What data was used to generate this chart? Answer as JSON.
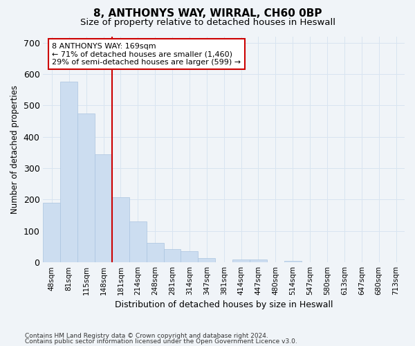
{
  "title1": "8, ANTHONYS WAY, WIRRAL, CH60 0BP",
  "title2": "Size of property relative to detached houses in Heswall",
  "xlabel": "Distribution of detached houses by size in Heswall",
  "ylabel": "Number of detached properties",
  "categories": [
    "48sqm",
    "81sqm",
    "115sqm",
    "148sqm",
    "181sqm",
    "214sqm",
    "248sqm",
    "281sqm",
    "314sqm",
    "347sqm",
    "381sqm",
    "414sqm",
    "447sqm",
    "480sqm",
    "514sqm",
    "547sqm",
    "580sqm",
    "613sqm",
    "647sqm",
    "680sqm",
    "713sqm"
  ],
  "values": [
    190,
    575,
    475,
    345,
    207,
    130,
    62,
    43,
    35,
    13,
    0,
    9,
    9,
    0,
    5,
    0,
    0,
    0,
    0,
    0,
    0
  ],
  "bar_color": "#ccddf0",
  "bar_edge_color": "#aac4e0",
  "grid_color": "#d8e4f0",
  "background_color": "#f0f4f8",
  "vline_color": "#cc0000",
  "vline_x_idx": 3.5,
  "annotation_line1": "8 ANTHONYS WAY: 169sqm",
  "annotation_line2": "← 71% of detached houses are smaller (1,460)",
  "annotation_line3": "29% of semi-detached houses are larger (599) →",
  "annotation_box_color": "#ffffff",
  "annotation_box_edge": "#cc0000",
  "ylim": [
    0,
    720
  ],
  "yticks": [
    0,
    100,
    200,
    300,
    400,
    500,
    600,
    700
  ],
  "footer1": "Contains HM Land Registry data © Crown copyright and database right 2024.",
  "footer2": "Contains public sector information licensed under the Open Government Licence v3.0."
}
